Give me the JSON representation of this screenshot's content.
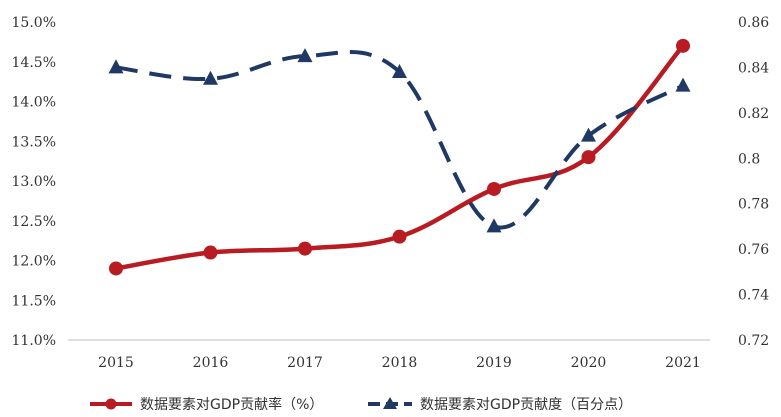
{
  "chart_data": {
    "type": "line",
    "x": [
      "2015",
      "2016",
      "2017",
      "2018",
      "2019",
      "2020",
      "2021"
    ],
    "y_left": {
      "ticks": [
        "15.0%",
        "14.5%",
        "14.0%",
        "13.5%",
        "13.0%",
        "12.5%",
        "12.0%",
        "11.5%",
        "11.0%"
      ],
      "ylim": [
        11.0,
        15.0
      ]
    },
    "y_right": {
      "ticks": [
        "0.86",
        "0.84",
        "0.82",
        "0.8",
        "0.78",
        "0.76",
        "0.74",
        "0.72"
      ],
      "ylim": [
        0.72,
        0.86
      ]
    },
    "series": [
      {
        "name": "数据要素对GDP贡献率（%）",
        "axis": "left",
        "color": "#b81c22",
        "style": "solid",
        "marker": "circle",
        "values": [
          11.9,
          12.1,
          12.15,
          12.3,
          12.9,
          13.3,
          14.7
        ]
      },
      {
        "name": "数据要素对GDP贡献度（百分点）",
        "axis": "right",
        "color": "#1f3864",
        "style": "dashed",
        "marker": "triangle",
        "values": [
          0.84,
          0.835,
          0.845,
          0.838,
          0.77,
          0.81,
          0.832
        ]
      }
    ],
    "legend": "bottom",
    "grid": false
  }
}
